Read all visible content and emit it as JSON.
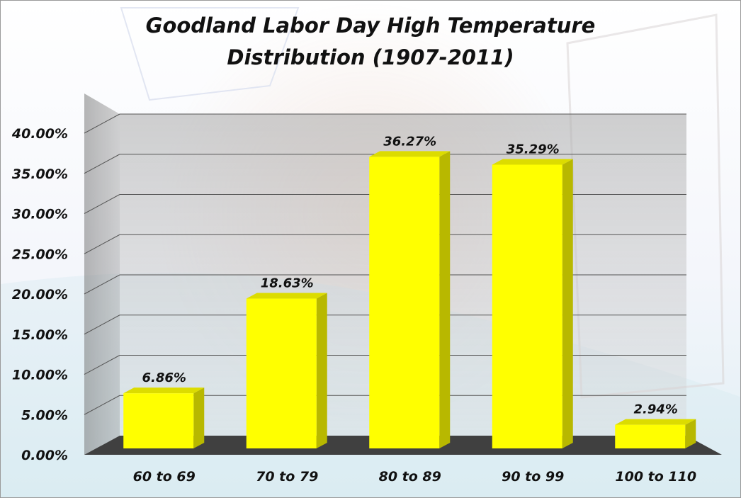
{
  "chart_data": {
    "type": "bar",
    "title": "Goodland Labor Day High Temperature Distribution (1907-2011)",
    "title_lines": [
      "Goodland Labor Day High Temperature",
      "Distribution (1907-2011)"
    ],
    "xlabel": "",
    "ylabel": "",
    "categories": [
      "60 to 69",
      "70 to 79",
      "80 to 89",
      "90 to 99",
      "100 to 110"
    ],
    "values": [
      6.86,
      18.63,
      36.27,
      35.29,
      2.94
    ],
    "data_labels": [
      "6.86%",
      "18.63%",
      "36.27%",
      "35.29%",
      "2.94%"
    ],
    "ylim": [
      0,
      40
    ],
    "yticks": [
      "0.00%",
      "5.00%",
      "10.00%",
      "15.00%",
      "20.00%",
      "25.00%",
      "30.00%",
      "35.00%",
      "40.00%"
    ],
    "grid": true,
    "style": "3d",
    "bar_color": "#ffff00",
    "floor_color": "#404040",
    "legend": "none"
  }
}
